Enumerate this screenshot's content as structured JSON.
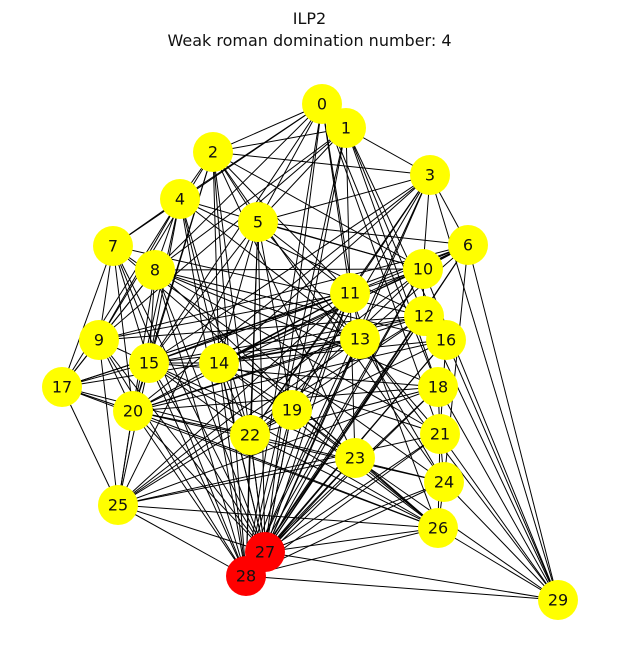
{
  "title": "ILP2",
  "subtitle": "Weak roman domination number: 4",
  "colors": {
    "node_default": "#ffff00",
    "node_selected": "#ff0000",
    "edge": "#000000"
  },
  "nodes": [
    {
      "id": "0",
      "state": "default"
    },
    {
      "id": "1",
      "state": "default"
    },
    {
      "id": "2",
      "state": "default"
    },
    {
      "id": "3",
      "state": "default"
    },
    {
      "id": "4",
      "state": "default"
    },
    {
      "id": "5",
      "state": "default"
    },
    {
      "id": "6",
      "state": "default"
    },
    {
      "id": "7",
      "state": "default"
    },
    {
      "id": "8",
      "state": "default"
    },
    {
      "id": "9",
      "state": "default"
    },
    {
      "id": "10",
      "state": "default"
    },
    {
      "id": "11",
      "state": "default"
    },
    {
      "id": "12",
      "state": "default"
    },
    {
      "id": "13",
      "state": "default"
    },
    {
      "id": "14",
      "state": "default"
    },
    {
      "id": "15",
      "state": "default"
    },
    {
      "id": "16",
      "state": "default"
    },
    {
      "id": "17",
      "state": "default"
    },
    {
      "id": "18",
      "state": "default"
    },
    {
      "id": "19",
      "state": "default"
    },
    {
      "id": "20",
      "state": "default"
    },
    {
      "id": "21",
      "state": "default"
    },
    {
      "id": "22",
      "state": "default"
    },
    {
      "id": "23",
      "state": "default"
    },
    {
      "id": "24",
      "state": "default"
    },
    {
      "id": "25",
      "state": "default"
    },
    {
      "id": "26",
      "state": "default"
    },
    {
      "id": "27",
      "state": "selected"
    },
    {
      "id": "28",
      "state": "selected"
    },
    {
      "id": "29",
      "state": "default"
    }
  ],
  "edges": [
    [
      "0",
      "1"
    ],
    [
      "0",
      "2"
    ],
    [
      "0",
      "4"
    ],
    [
      "0",
      "5"
    ],
    [
      "0",
      "7"
    ],
    [
      "0",
      "8"
    ],
    [
      "0",
      "11"
    ],
    [
      "0",
      "13"
    ],
    [
      "0",
      "18"
    ],
    [
      "0",
      "21"
    ],
    [
      "0",
      "27"
    ],
    [
      "0",
      "28"
    ],
    [
      "0",
      "15"
    ],
    [
      "1",
      "2"
    ],
    [
      "1",
      "3"
    ],
    [
      "1",
      "5"
    ],
    [
      "1",
      "8"
    ],
    [
      "1",
      "11"
    ],
    [
      "1",
      "12"
    ],
    [
      "1",
      "16"
    ],
    [
      "1",
      "18"
    ],
    [
      "1",
      "27"
    ],
    [
      "1",
      "28"
    ],
    [
      "1",
      "9"
    ],
    [
      "2",
      "3"
    ],
    [
      "2",
      "4"
    ],
    [
      "2",
      "5"
    ],
    [
      "2",
      "9"
    ],
    [
      "2",
      "11"
    ],
    [
      "2",
      "14"
    ],
    [
      "2",
      "15"
    ],
    [
      "2",
      "20"
    ],
    [
      "2",
      "23"
    ],
    [
      "2",
      "27"
    ],
    [
      "2",
      "28"
    ],
    [
      "2",
      "10"
    ],
    [
      "2",
      "24"
    ],
    [
      "3",
      "5"
    ],
    [
      "3",
      "6"
    ],
    [
      "3",
      "11"
    ],
    [
      "3",
      "14"
    ],
    [
      "3",
      "15"
    ],
    [
      "3",
      "19"
    ],
    [
      "3",
      "20"
    ],
    [
      "3",
      "22"
    ],
    [
      "3",
      "27"
    ],
    [
      "3",
      "28"
    ],
    [
      "3",
      "10"
    ],
    [
      "4",
      "7"
    ],
    [
      "4",
      "8"
    ],
    [
      "4",
      "9"
    ],
    [
      "4",
      "12"
    ],
    [
      "4",
      "13"
    ],
    [
      "4",
      "17"
    ],
    [
      "4",
      "20"
    ],
    [
      "4",
      "22"
    ],
    [
      "4",
      "27"
    ],
    [
      "4",
      "28"
    ],
    [
      "4",
      "10"
    ],
    [
      "4",
      "15"
    ],
    [
      "5",
      "10"
    ],
    [
      "5",
      "11"
    ],
    [
      "5",
      "14"
    ],
    [
      "5",
      "15"
    ],
    [
      "5",
      "19"
    ],
    [
      "5",
      "22"
    ],
    [
      "5",
      "25"
    ],
    [
      "5",
      "27"
    ],
    [
      "5",
      "28"
    ],
    [
      "5",
      "21"
    ],
    [
      "5",
      "6"
    ],
    [
      "6",
      "10"
    ],
    [
      "6",
      "11"
    ],
    [
      "6",
      "13"
    ],
    [
      "6",
      "14"
    ],
    [
      "6",
      "15"
    ],
    [
      "6",
      "24"
    ],
    [
      "6",
      "27"
    ],
    [
      "6",
      "28"
    ],
    [
      "6",
      "29"
    ],
    [
      "6",
      "9"
    ],
    [
      "6",
      "20"
    ],
    [
      "7",
      "9"
    ],
    [
      "7",
      "12"
    ],
    [
      "7",
      "15"
    ],
    [
      "7",
      "17"
    ],
    [
      "7",
      "24"
    ],
    [
      "7",
      "26"
    ],
    [
      "7",
      "27"
    ],
    [
      "7",
      "28"
    ],
    [
      "7",
      "20"
    ],
    [
      "8",
      "10"
    ],
    [
      "8",
      "13"
    ],
    [
      "8",
      "15"
    ],
    [
      "8",
      "18"
    ],
    [
      "8",
      "21"
    ],
    [
      "8",
      "25"
    ],
    [
      "8",
      "27"
    ],
    [
      "8",
      "28"
    ],
    [
      "8",
      "9"
    ],
    [
      "8",
      "17"
    ],
    [
      "8",
      "16"
    ],
    [
      "8",
      "23"
    ],
    [
      "9",
      "12"
    ],
    [
      "9",
      "15"
    ],
    [
      "9",
      "17"
    ],
    [
      "9",
      "20"
    ],
    [
      "9",
      "25"
    ],
    [
      "9",
      "27"
    ],
    [
      "9",
      "28"
    ],
    [
      "9",
      "11"
    ],
    [
      "10",
      "12"
    ],
    [
      "10",
      "14"
    ],
    [
      "10",
      "22"
    ],
    [
      "10",
      "27"
    ],
    [
      "10",
      "28"
    ],
    [
      "10",
      "25"
    ],
    [
      "10",
      "17"
    ],
    [
      "11",
      "14"
    ],
    [
      "11",
      "15"
    ],
    [
      "11",
      "19"
    ],
    [
      "11",
      "22"
    ],
    [
      "11",
      "25"
    ],
    [
      "11",
      "27"
    ],
    [
      "11",
      "28"
    ],
    [
      "11",
      "20"
    ],
    [
      "11",
      "17"
    ],
    [
      "11",
      "26"
    ],
    [
      "11",
      "23"
    ],
    [
      "12",
      "14"
    ],
    [
      "12",
      "15"
    ],
    [
      "12",
      "20"
    ],
    [
      "12",
      "27"
    ],
    [
      "12",
      "28"
    ],
    [
      "12",
      "22"
    ],
    [
      "12",
      "25"
    ],
    [
      "12",
      "16"
    ],
    [
      "13",
      "14"
    ],
    [
      "13",
      "15"
    ],
    [
      "13",
      "20"
    ],
    [
      "13",
      "25"
    ],
    [
      "13",
      "27"
    ],
    [
      "13",
      "28"
    ],
    [
      "13",
      "17"
    ],
    [
      "13",
      "24"
    ],
    [
      "14",
      "15"
    ],
    [
      "14",
      "19"
    ],
    [
      "14",
      "22"
    ],
    [
      "14",
      "26"
    ],
    [
      "14",
      "27"
    ],
    [
      "14",
      "28"
    ],
    [
      "14",
      "16"
    ],
    [
      "14",
      "21"
    ],
    [
      "15",
      "17"
    ],
    [
      "15",
      "20"
    ],
    [
      "15",
      "22"
    ],
    [
      "15",
      "25"
    ],
    [
      "15",
      "26"
    ],
    [
      "15",
      "27"
    ],
    [
      "15",
      "28"
    ],
    [
      "15",
      "18"
    ],
    [
      "15",
      "23"
    ],
    [
      "16",
      "21"
    ],
    [
      "16",
      "22"
    ],
    [
      "16",
      "27"
    ],
    [
      "16",
      "28"
    ],
    [
      "16",
      "20"
    ],
    [
      "16",
      "29"
    ],
    [
      "17",
      "20"
    ],
    [
      "17",
      "25"
    ],
    [
      "17",
      "26"
    ],
    [
      "17",
      "22"
    ],
    [
      "18",
      "21"
    ],
    [
      "18",
      "22"
    ],
    [
      "18",
      "27"
    ],
    [
      "18",
      "28"
    ],
    [
      "18",
      "25"
    ],
    [
      "18",
      "20"
    ],
    [
      "19",
      "22"
    ],
    [
      "19",
      "23"
    ],
    [
      "19",
      "27"
    ],
    [
      "19",
      "28"
    ],
    [
      "19",
      "26"
    ],
    [
      "20",
      "22"
    ],
    [
      "20",
      "25"
    ],
    [
      "20",
      "26"
    ],
    [
      "20",
      "27"
    ],
    [
      "20",
      "28"
    ],
    [
      "20",
      "24"
    ],
    [
      "21",
      "24"
    ],
    [
      "21",
      "26"
    ],
    [
      "21",
      "27"
    ],
    [
      "21",
      "28"
    ],
    [
      "21",
      "29"
    ],
    [
      "21",
      "25"
    ],
    [
      "22",
      "27"
    ],
    [
      "22",
      "28"
    ],
    [
      "22",
      "26"
    ],
    [
      "22",
      "24"
    ],
    [
      "23",
      "26"
    ],
    [
      "23",
      "27"
    ],
    [
      "23",
      "28"
    ],
    [
      "23",
      "29"
    ],
    [
      "23",
      "25"
    ],
    [
      "24",
      "26"
    ],
    [
      "24",
      "27"
    ],
    [
      "24",
      "28"
    ],
    [
      "24",
      "29"
    ],
    [
      "25",
      "27"
    ],
    [
      "25",
      "28"
    ],
    [
      "25",
      "26"
    ],
    [
      "26",
      "27"
    ],
    [
      "26",
      "28"
    ],
    [
      "26",
      "29"
    ],
    [
      "27",
      "28"
    ],
    [
      "28",
      "29"
    ],
    [
      "27",
      "29"
    ],
    [
      "12",
      "29"
    ],
    [
      "10",
      "29"
    ],
    [
      "13",
      "29"
    ],
    [
      "18",
      "29"
    ],
    [
      "3",
      "29"
    ]
  ]
}
